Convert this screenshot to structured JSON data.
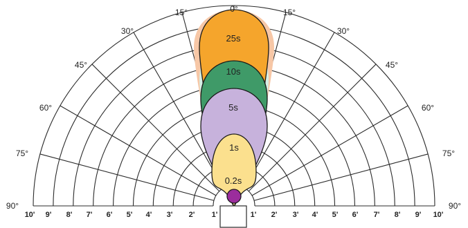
{
  "angle_labels": [
    "0°",
    "15°",
    "15°",
    "30°",
    "30°",
    "45°",
    "45°",
    "60°",
    "60°",
    "75°",
    "75°",
    "90°",
    "90°"
  ],
  "distance_labels_left": [
    "10'",
    "9'",
    "8'",
    "7'",
    "6'",
    "5'",
    "4'",
    "3'",
    "2'",
    "1'"
  ],
  "distance_labels_right": [
    "1'",
    "2'",
    "3'",
    "4'",
    "5'",
    "6'",
    "7'",
    "8'",
    "9'",
    "10'"
  ],
  "lobes": [
    {
      "label": "25s",
      "color": "#f5a52c"
    },
    {
      "label": "10s",
      "color": "#3f9a68"
    },
    {
      "label": "5s",
      "color": "#c7b2dc"
    },
    {
      "label": "1s",
      "color": "#fbe08e"
    },
    {
      "label": "0.2s",
      "color": "#9b2d9c"
    }
  ],
  "colors": {
    "grid": "#2a2a2a",
    "outer_halo": "#f7c7a6",
    "inner_halo": "#d6efe4"
  }
}
